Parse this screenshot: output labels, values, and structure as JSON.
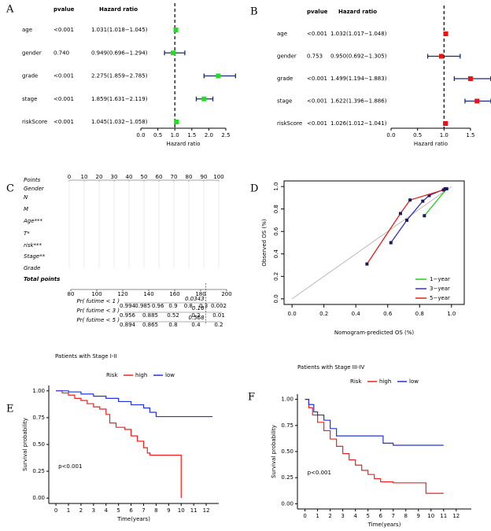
{
  "chart_data": [
    {
      "type": "forest",
      "panel": "A",
      "columns": [
        "pvalue",
        "Hazard ratio"
      ],
      "categories": [
        "age",
        "gender",
        "grade",
        "stage",
        "riskScore"
      ],
      "pvalues": [
        "<0.001",
        "0.740",
        "<0.001",
        "<0.001",
        "<0.001"
      ],
      "values": [
        1.031,
        0.949,
        2.275,
        1.859,
        1.045
      ],
      "lower": [
        1.018,
        0.696,
        1.859,
        1.631,
        1.032
      ],
      "upper": [
        1.045,
        1.294,
        2.785,
        2.119,
        1.058
      ],
      "value_labels": [
        "1.031(1.018−1.045)",
        "0.949(0.696−1.294)",
        "2.275(1.859−2.785)",
        "1.859(1.631−2.119)",
        "1.045(1.032−1.058)"
      ],
      "color": "#22dd22",
      "xlabel": "Hazard ratio",
      "xlim": [
        0,
        2.5
      ],
      "xticks": [
        {
          "value": 0,
          "label": "0.0"
        },
        0.5,
        {
          "value": 1,
          "label": "1.0"
        },
        1.5,
        {
          "value": 2,
          "label": "2.0"
        },
        2.5
      ],
      "reference_line": 1
    },
    {
      "type": "forest",
      "panel": "B",
      "columns": [
        "pvalue",
        "Hazard ratio"
      ],
      "categories": [
        "age",
        "gender",
        "grade",
        "stage",
        "riskScore"
      ],
      "pvalues": [
        "<0.001",
        "0.753",
        "<0.001",
        "<0.001",
        "<0.001"
      ],
      "values": [
        1.032,
        0.95,
        1.499,
        1.622,
        1.026
      ],
      "lower": [
        1.017,
        0.692,
        1.194,
        1.396,
        1.012
      ],
      "upper": [
        1.048,
        1.305,
        1.883,
        1.886,
        1.041
      ],
      "value_labels": [
        "1.032(1.017−1.048)",
        "0.950(0.692−1.305)",
        "1.499(1.194−1.883)",
        "1.622(1.396−1.886)",
        "1.026(1.012−1.041)"
      ],
      "color": "#ee1111",
      "xlabel": "Hazard ratio",
      "xlim": [
        0,
        1.5
      ],
      "xticks": [
        {
          "value": 0,
          "label": "0.0"
        },
        0.5,
        {
          "value": 1,
          "label": "1.0"
        },
        1.5
      ],
      "reference_line": 1
    },
    {
      "type": "nomogram",
      "panel": "C",
      "rows": [
        "Points",
        "Gender",
        "N",
        "M",
        "Age***",
        "T*",
        "risk***",
        "Stage**",
        "Grade",
        "Total points"
      ],
      "points_ticks": [
        0,
        10,
        20,
        30,
        40,
        50,
        60,
        70,
        80,
        90,
        100
      ],
      "total_points_ticks": [
        80,
        100,
        120,
        140,
        160,
        180,
        200
      ],
      "total_points_value": 184,
      "probabilities": [
        {
          "label": "Pr( futime < 1 )",
          "ticks": [
            "0.994",
            "0.985",
            "0.96",
            "0.9",
            "0.8",
            "0.3",
            "0.002"
          ],
          "value_label": "0.0343"
        },
        {
          "label": "Pr( futime < 3 )",
          "ticks": [
            "0.956",
            "0.885",
            "0.52",
            "0.2",
            "0.01"
          ],
          "value_label": "0.16"
        },
        {
          "label": "Pr( futime < 5 )",
          "ticks": [
            "0.894",
            "0.865",
            "0.8",
            "0.4",
            "0.2"
          ],
          "value_label": "0.568"
        }
      ]
    },
    {
      "type": "line",
      "panel": "D",
      "xlabel": "Nomogram-predicted OS (%)",
      "ylabel": "Observed OS (%)",
      "xlim": [
        -0.05,
        1.08
      ],
      "ylim": [
        -0.05,
        1.05
      ],
      "xticks": [
        {
          "value": 0,
          "label": "0.0"
        },
        0.2,
        0.4,
        0.6,
        0.8,
        {
          "value": 1,
          "label": "1.0"
        }
      ],
      "yticks": [
        {
          "value": 0,
          "label": "0.0"
        },
        0.2,
        0.4,
        0.6,
        0.8,
        {
          "value": 1,
          "label": "1.0"
        }
      ],
      "legend": "bottom right",
      "series": [
        {
          "name": "1−year",
          "color": "#22cc22",
          "x": [
            0.83,
            0.97
          ],
          "values": [
            0.74,
            0.98
          ]
        },
        {
          "name": "3−year",
          "color": "#3333bb",
          "x": [
            0.62,
            0.72,
            0.82,
            0.86,
            0.96
          ],
          "values": [
            0.5,
            0.7,
            0.87,
            0.92,
            0.98
          ]
        },
        {
          "name": "5−year",
          "color": "#dd2222",
          "x": [
            0.47,
            0.68,
            0.74,
            0.95
          ],
          "values": [
            0.31,
            0.76,
            0.88,
            0.97
          ]
        }
      ]
    },
    {
      "type": "step",
      "panel": "E",
      "title": "Patients with Stage I-II",
      "legend_title": "Risk",
      "xlabel": "Time(years)",
      "ylabel": "Survival probability",
      "annotation": "p<0.001",
      "xlim": [
        -0.57,
        13
      ],
      "ylim": [
        -0.05,
        1.05
      ],
      "xticks": [
        0,
        1,
        2,
        3,
        4,
        5,
        6,
        7,
        8,
        9,
        10,
        11,
        12
      ],
      "yticks": [
        {
          "value": 0,
          "label": "0.00"
        },
        {
          "value": 0.25,
          "label": "0.25"
        },
        {
          "value": 0.5,
          "label": "0.50"
        },
        {
          "value": 0.75,
          "label": "0.75"
        },
        {
          "value": 1,
          "label": "1.00"
        }
      ],
      "series": [
        {
          "name": "high",
          "color": "#ee2222",
          "x": [
            0,
            0.5,
            1,
            1.5,
            2,
            2.5,
            3,
            3.5,
            4,
            4.3,
            4.8,
            5.5,
            6,
            6.5,
            7,
            7.3,
            7.5,
            10
          ],
          "values": [
            1,
            0.98,
            0.96,
            0.93,
            0.91,
            0.88,
            0.85,
            0.83,
            0.78,
            0.7,
            0.66,
            0.64,
            0.58,
            0.53,
            0.47,
            0.42,
            0.4,
            0.0
          ]
        },
        {
          "name": "low",
          "color": "#2233dd",
          "x": [
            0,
            1,
            2,
            3,
            4,
            5,
            6,
            7,
            7.5,
            8,
            12.5
          ],
          "values": [
            1,
            0.99,
            0.97,
            0.95,
            0.93,
            0.9,
            0.87,
            0.84,
            0.8,
            0.76,
            0.76
          ]
        }
      ]
    },
    {
      "type": "step",
      "panel": "F",
      "title": "Patients with Stage III-IV",
      "legend_title": "Risk",
      "xlabel": "Time(years)",
      "ylabel": "Survival probability",
      "annotation": "p<0.001",
      "xlim": [
        -0.6,
        13.2
      ],
      "ylim": [
        -0.05,
        1.05
      ],
      "xticks": [
        0,
        1,
        2,
        3,
        4,
        5,
        6,
        7,
        8,
        9,
        10,
        11,
        12
      ],
      "yticks": [
        {
          "value": 0,
          "label": "0.00"
        },
        {
          "value": 0.25,
          "label": "0.25"
        },
        {
          "value": 0.5,
          "label": "0.50"
        },
        {
          "value": 0.75,
          "label": "0.75"
        },
        {
          "value": 1,
          "label": "1.00"
        }
      ],
      "series": [
        {
          "name": "high",
          "color": "#ee2222",
          "x": [
            0,
            0.3,
            0.6,
            1,
            1.5,
            2,
            2.5,
            3,
            3.5,
            4,
            4.5,
            5,
            5.5,
            6,
            7,
            9.6,
            11
          ],
          "values": [
            1,
            0.92,
            0.85,
            0.78,
            0.7,
            0.62,
            0.55,
            0.48,
            0.42,
            0.37,
            0.32,
            0.28,
            0.24,
            0.21,
            0.2,
            0.1,
            0.1
          ]
        },
        {
          "name": "low",
          "color": "#2233dd",
          "x": [
            0,
            0.3,
            0.7,
            1,
            1.5,
            2,
            2.5,
            6.2,
            7,
            11
          ],
          "values": [
            1,
            0.95,
            0.88,
            0.85,
            0.8,
            0.72,
            0.65,
            0.58,
            0.56,
            0.56
          ]
        }
      ]
    }
  ]
}
